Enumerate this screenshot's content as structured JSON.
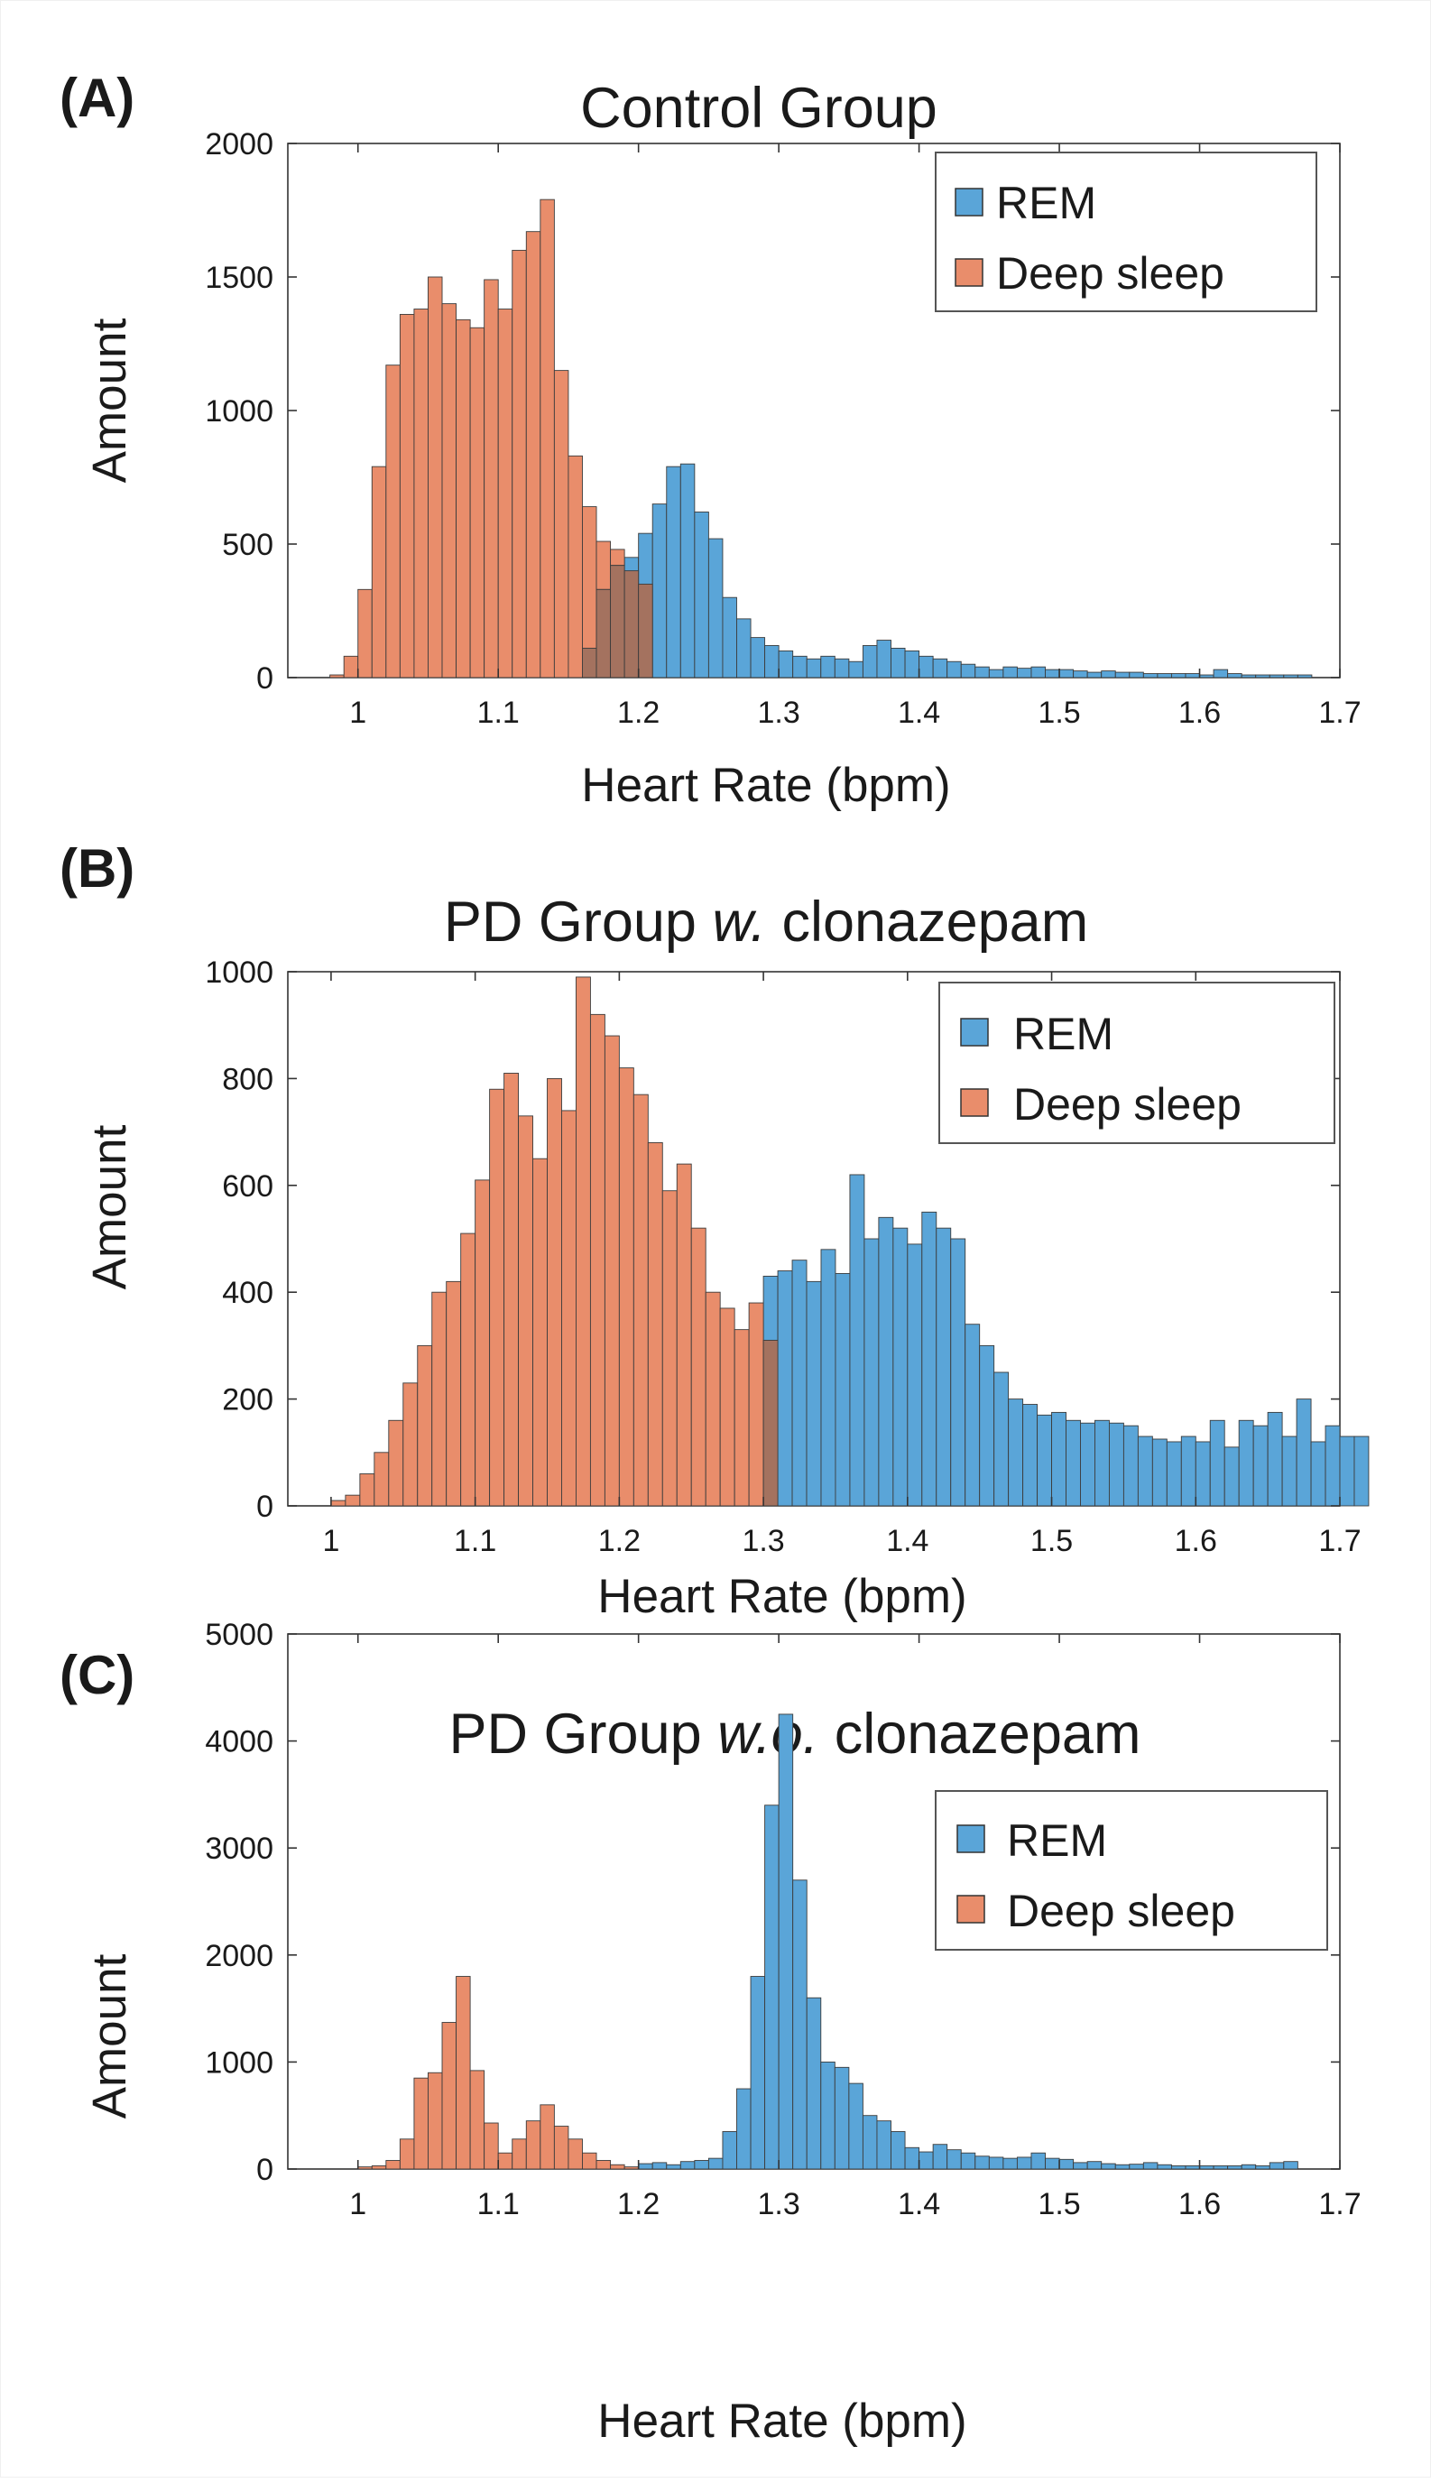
{
  "legend_labels": [
    "REM",
    "Deep sleep"
  ],
  "colors": {
    "rem": "#5aa5d8",
    "deep": "#e98d6b",
    "overlap": "#a4725f",
    "axis": "#333333",
    "bar_edge": "#3c3c3c"
  },
  "chart_data": [
    {
      "panel_label": "(A)",
      "title": "Control Group",
      "title_italic": "",
      "title_suffix": "",
      "type": "bar",
      "xlabel": "Heart Rate (bpm)",
      "ylabel": "Amount",
      "xlim": [
        0.95,
        1.7
      ],
      "ylim": [
        0,
        2000
      ],
      "xticks": [
        "1",
        "1.1",
        "1.2",
        "1.3",
        "1.4",
        "1.5",
        "1.6",
        "1.7"
      ],
      "yticks": [
        "0",
        "500",
        "1000",
        "1500",
        "2000"
      ],
      "legend_position": "top-right",
      "bin_width": 0.01,
      "series": [
        {
          "name": "REM",
          "x_start": 1.16,
          "values": [
            110,
            330,
            420,
            450,
            540,
            650,
            790,
            800,
            620,
            520,
            300,
            220,
            150,
            120,
            100,
            80,
            70,
            80,
            70,
            60,
            120,
            140,
            110,
            100,
            80,
            70,
            60,
            50,
            40,
            30,
            40,
            35,
            40,
            30,
            30,
            25,
            20,
            25,
            20,
            20,
            15,
            15,
            15,
            15,
            10,
            30,
            15,
            10,
            10,
            10,
            10,
            10
          ]
        },
        {
          "name": "Deep sleep",
          "x_start": 0.98,
          "values": [
            10,
            80,
            330,
            790,
            1170,
            1360,
            1380,
            1500,
            1400,
            1340,
            1310,
            1490,
            1380,
            1600,
            1670,
            1790,
            1150,
            830,
            640,
            510,
            480,
            400,
            350,
            0
          ]
        }
      ]
    },
    {
      "panel_label": "(B)",
      "title": "PD Group ",
      "title_italic": "w.",
      "title_suffix": " clonazepam",
      "type": "bar",
      "xlabel": "Heart Rate (bpm)",
      "ylabel": "Amount",
      "xlim": [
        0.97,
        1.7
      ],
      "ylim": [
        0,
        1000
      ],
      "xticks": [
        "1",
        "1.1",
        "1.2",
        "1.3",
        "1.4",
        "1.5",
        "1.6",
        "1.7"
      ],
      "yticks": [
        "0",
        "200",
        "400",
        "600",
        "800",
        "1000"
      ],
      "legend_position": "top-right",
      "bin_width": 0.01,
      "series": [
        {
          "name": "REM",
          "x_start": 1.3,
          "values": [
            430,
            440,
            460,
            420,
            480,
            435,
            620,
            500,
            540,
            520,
            490,
            550,
            520,
            500,
            340,
            300,
            250,
            200,
            190,
            170,
            175,
            160,
            155,
            160,
            155,
            150,
            130,
            125,
            120,
            130,
            120,
            160,
            110,
            160,
            150,
            175,
            130,
            200,
            120,
            150,
            130,
            130
          ]
        },
        {
          "name": "Deep sleep",
          "x_start": 1.0,
          "values": [
            10,
            20,
            60,
            100,
            160,
            230,
            300,
            400,
            420,
            510,
            610,
            780,
            810,
            730,
            650,
            800,
            740,
            990,
            920,
            880,
            820,
            770,
            680,
            590,
            640,
            520,
            400,
            370,
            330,
            380,
            310
          ]
        }
      ]
    },
    {
      "panel_label": "(C)",
      "title": "PD Group ",
      "title_italic": "w.o.",
      "title_suffix": " clonazepam",
      "type": "bar",
      "xlabel": "Heart Rate (bpm)",
      "ylabel": "Amount",
      "xlim": [
        0.95,
        1.7
      ],
      "ylim": [
        0,
        5000
      ],
      "xticks": [
        "1",
        "1.1",
        "1.2",
        "1.3",
        "1.4",
        "1.5",
        "1.6",
        "1.7"
      ],
      "yticks": [
        "0",
        "1000",
        "2000",
        "3000",
        "4000",
        "5000"
      ],
      "legend_position": "top-right",
      "bin_width": 0.01,
      "series": [
        {
          "name": "REM",
          "x_start": 1.2,
          "values": [
            50,
            60,
            40,
            70,
            80,
            100,
            350,
            750,
            1800,
            3400,
            4250,
            2700,
            1600,
            1000,
            950,
            800,
            500,
            450,
            350,
            200,
            160,
            230,
            180,
            150,
            120,
            110,
            100,
            110,
            150,
            100,
            90,
            60,
            70,
            50,
            40,
            45,
            60,
            40,
            30,
            30,
            30,
            30,
            30,
            40,
            30,
            60,
            70
          ]
        },
        {
          "name": "Deep sleep",
          "x_start": 1.0,
          "values": [
            20,
            30,
            80,
            280,
            850,
            900,
            1370,
            1800,
            920,
            430,
            150,
            280,
            450,
            600,
            400,
            280,
            150,
            80,
            40,
            20
          ]
        }
      ]
    }
  ]
}
